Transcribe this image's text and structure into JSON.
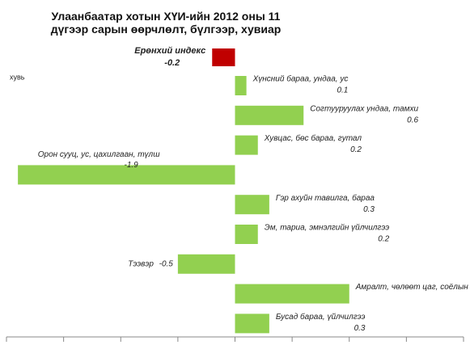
{
  "chart_data": {
    "type": "barh",
    "title": "Улаанбаатар хотын  ХҮИ-ийн  2012 оны 11 дүгээр сарын өөрчлөлт, бүлгээр, хувиар",
    "ylabel": "хувь",
    "categories": [
      "Ерөнхий индекс",
      "Хүнсний бараа, ундаа, ус",
      "Согтууруулах ундаа, тамхи",
      "Хувцас, бөс бараа, гутал",
      "Орон сууц, ус, цахилгаан, түлш",
      "Гэр ахуйн тавилга, бараа",
      "Эм, тариа, эмнэлгийн үйлчилгээ",
      "Тээвэр",
      "Амралт, чөлөөт цаг, соёлын бараа, үйлчилгээ",
      "Бусад бараа, үйлчилгээ"
    ],
    "values": [
      -0.2,
      0.1,
      0.6,
      0.2,
      -1.9,
      0.3,
      0.2,
      -0.5,
      1.0,
      0.3
    ],
    "value_labels": [
      "-0.2",
      "0.1",
      "0.6",
      "0.2",
      "-1.9",
      "0.3",
      "0.2",
      "-0.5",
      "1.0",
      "0.3"
    ],
    "colors": [
      "#c00000",
      "#92d050",
      "#92d050",
      "#92d050",
      "#92d050",
      "#92d050",
      "#92d050",
      "#92d050",
      "#92d050",
      "#92d050"
    ],
    "xlim": [
      -2,
      2
    ],
    "xticks": [
      -2,
      -1.5,
      -1,
      -0.5,
      0,
      0.5,
      1,
      1.5,
      2
    ]
  }
}
